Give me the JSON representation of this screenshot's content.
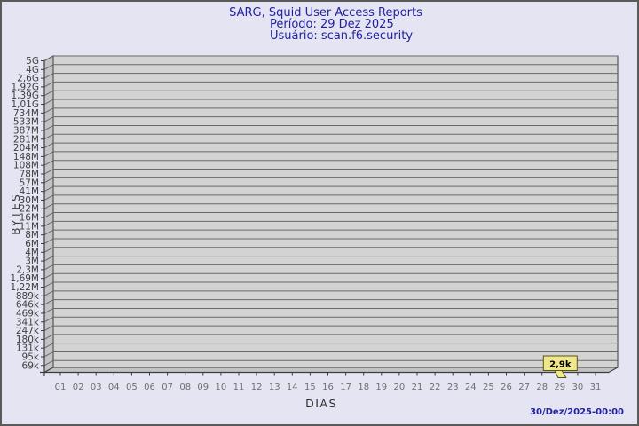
{
  "header": {
    "title": "SARG, Squid User Access Reports",
    "period": "Período: 29 Dez 2025",
    "user": "Usuário: scan.f6.security"
  },
  "footer": {
    "timestamp": "30/Dez/2025-00:00"
  },
  "colors": {
    "background": "#e4e4f2",
    "panel_fill": "#d3d3d3",
    "wall_fill": "#c3c3c5",
    "gridline": "#696969",
    "frame": "#3c3c3c",
    "title_navy": "#2222a0",
    "y_label": "#3f3f3f",
    "x_label": "#6f6f6f",
    "flag_fill": "#f0e68c",
    "flag_border": "#55551a",
    "flag_text": "#000000"
  },
  "chart_data": {
    "type": "bar",
    "title": "SARG, Squid User Access Reports",
    "subtitle1": "Período: 29 Dez 2025",
    "subtitle2": "Usuário: scan.f6.security",
    "xlabel": "DIAS",
    "ylabel": "BYTES",
    "y_scale": "log",
    "grid": true,
    "y_ticks": [
      "5G",
      "4G",
      "2,6G",
      "1,92G",
      "1,39G",
      "1,01G",
      "734M",
      "533M",
      "387M",
      "281M",
      "204M",
      "148M",
      "108M",
      "78M",
      "57M",
      "41M",
      "30M",
      "22M",
      "16M",
      "11M",
      "8M",
      "6M",
      "4M",
      "3M",
      "2,3M",
      "1,69M",
      "1,22M",
      "889k",
      "646k",
      "469k",
      "341k",
      "247k",
      "180k",
      "131k",
      "95k",
      "69k"
    ],
    "x_ticks": [
      "01",
      "02",
      "03",
      "04",
      "05",
      "06",
      "07",
      "08",
      "09",
      "10",
      "11",
      "12",
      "13",
      "14",
      "15",
      "16",
      "17",
      "18",
      "19",
      "20",
      "21",
      "22",
      "23",
      "24",
      "25",
      "26",
      "27",
      "28",
      "29",
      "30",
      "31"
    ],
    "points": [
      {
        "x": "29",
        "label": "2,9k"
      }
    ]
  }
}
